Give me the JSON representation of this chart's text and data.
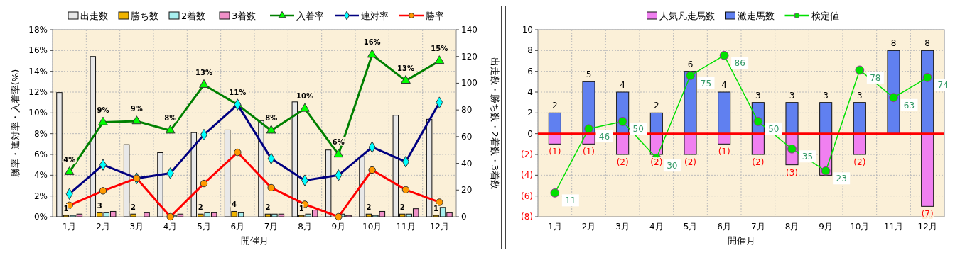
{
  "chart_data": [
    {
      "type": "bar",
      "categories": [
        "1月",
        "2月",
        "3月",
        "4月",
        "5月",
        "6月",
        "7月",
        "8月",
        "9月",
        "10月",
        "11月",
        "12月"
      ],
      "xlabel": "開催月",
      "ylabel": "勝率・連対率・入着率(%)",
      "y2label": "出走数・勝ち数・2着数・3着数",
      "ylim": [
        0,
        18
      ],
      "yticks": [
        {
          "value": 0,
          "label": "0%"
        },
        {
          "value": 2,
          "label": "2%"
        },
        {
          "value": 4,
          "label": "4%"
        },
        {
          "value": 6,
          "label": "6%"
        },
        {
          "value": 8,
          "label": "8%"
        },
        {
          "value": 10,
          "label": "10%"
        },
        {
          "value": 12,
          "label": "12%"
        },
        {
          "value": 14,
          "label": "14%"
        },
        {
          "value": 16,
          "label": "16%"
        },
        {
          "value": 18,
          "label": "18%"
        }
      ],
      "y2lim": [
        0,
        140
      ],
      "y2ticks": [
        0,
        20,
        40,
        60,
        80,
        100,
        120,
        140
      ],
      "grid": true,
      "legend": "top",
      "series": [
        {
          "name": "出走数",
          "color": "#e8e8e8",
          "axis": "y2",
          "values": [
            93,
            120,
            54,
            48,
            63,
            65,
            72,
            86,
            50,
            45,
            76,
            73
          ]
        },
        {
          "name": "勝ち数",
          "color": "#f0b400",
          "axis": "y2",
          "values": [
            1,
            3,
            2,
            0,
            2,
            4,
            2,
            1,
            0,
            2,
            2,
            1
          ],
          "value_labels": [
            "1",
            "3",
            "2",
            null,
            "2",
            "4",
            "2",
            "1",
            null,
            "2",
            "2",
            "1"
          ]
        },
        {
          "name": "2着数",
          "color": "#a8f0f0",
          "axis": "y2",
          "values": [
            1,
            3,
            0,
            1,
            3,
            3,
            2,
            2,
            2,
            1,
            2,
            7
          ]
        },
        {
          "name": "3着数",
          "color": "#f090c8",
          "axis": "y2",
          "values": [
            2,
            4,
            3,
            2,
            3,
            0,
            2,
            5,
            1,
            4,
            6,
            3
          ]
        },
        {
          "name": "入着率",
          "type": "line",
          "color": "#008000",
          "marker": "triangle",
          "values": [
            4.3,
            9.1,
            9.2,
            8.3,
            12.7,
            10.8,
            8.3,
            10.4,
            6.0,
            15.6,
            13.1,
            15.0
          ],
          "value_labels": [
            "4%",
            "9%",
            "9%",
            "8%",
            "13%",
            "11%",
            "8%",
            "10%",
            "6%",
            "16%",
            "13%",
            "15%"
          ]
        },
        {
          "name": "連対率",
          "type": "line",
          "color": "#000080",
          "marker": "diamond",
          "values": [
            2.2,
            5.0,
            3.7,
            4.2,
            7.9,
            10.8,
            5.6,
            3.5,
            4.0,
            6.7,
            5.3,
            11.0
          ]
        },
        {
          "name": "勝率",
          "type": "line",
          "color": "#ff0000",
          "marker": "circle",
          "values": [
            1.1,
            2.5,
            3.7,
            0,
            3.2,
            6.2,
            2.8,
            1.2,
            0,
            4.5,
            2.6,
            1.4
          ]
        }
      ]
    },
    {
      "type": "bar",
      "categories": [
        "1月",
        "2月",
        "3月",
        "4月",
        "5月",
        "6月",
        "7月",
        "8月",
        "9月",
        "10月",
        "11月",
        "12月"
      ],
      "xlabel": "開催月",
      "ylim": [
        -8,
        10
      ],
      "yticks": [
        10,
        8,
        6,
        4,
        2,
        0,
        {
          "value": -2,
          "label": "(2)"
        },
        {
          "value": -4,
          "label": "(4)"
        },
        {
          "value": -6,
          "label": "(6)"
        },
        {
          "value": -8,
          "label": "(8)"
        }
      ],
      "y2lim": [
        -2,
        100
      ],
      "grid": true,
      "legend": "top",
      "stacked": true,
      "ref_lines": [
        {
          "axis": "y",
          "value": 0,
          "color": "#ff0000"
        }
      ],
      "series": [
        {
          "name": "人気凡走馬数",
          "color": "#f080f0",
          "values": [
            -1,
            -1,
            -2,
            -2,
            -2,
            -1,
            -2,
            -3,
            -4,
            -2,
            0,
            -7
          ],
          "value_labels": [
            "(1)",
            "(1)",
            "(2)",
            "(2)",
            "(2)",
            "(1)",
            "(2)",
            "(3)",
            null,
            "(2)",
            null,
            "(7)"
          ]
        },
        {
          "name": "激走馬数",
          "color": "#6080f0",
          "values": [
            2,
            5,
            4,
            2,
            6,
            4,
            3,
            3,
            3,
            3,
            8,
            8
          ],
          "value_labels": [
            "2",
            "5",
            "4",
            "2",
            "6",
            "4",
            "3",
            "3",
            "3",
            "3",
            "8",
            "8"
          ]
        },
        {
          "name": "検定値",
          "type": "line",
          "axis": "y2",
          "color": "#00e000",
          "marker": "circle",
          "values": [
            11,
            46,
            50,
            30,
            75,
            86,
            50,
            35,
            23,
            78,
            63,
            74
          ],
          "value_labels": [
            "11",
            "46",
            "50",
            "30",
            "75",
            "86",
            "50",
            "35",
            "23",
            "78",
            "63",
            "74"
          ]
        }
      ]
    }
  ]
}
